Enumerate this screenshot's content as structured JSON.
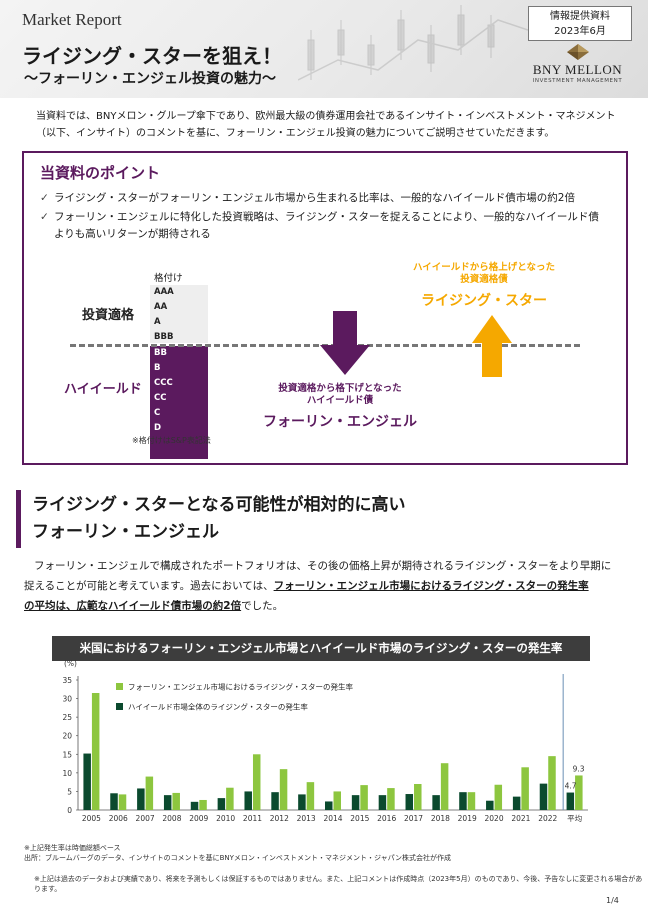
{
  "header": {
    "label": "Market Report",
    "title": "ライジング・スターを狙え！",
    "subtitle": "～フォーリン・エンジェル投資の魅力～",
    "info_line1": "情報提供資料",
    "info_line2": "2023年6月",
    "brand": "BNY MELLON",
    "brand_sub": "INVESTMENT MANAGEMENT"
  },
  "intro": {
    "line1": "当資料では、BNYメロン・グループ傘下であり、欧州最大級の債券運用会社であるインサイト・インベストメント・マネジメント",
    "line2": "（以下、インサイト）のコメントを基に、フォーリン・エンジェル投資の魅力についてご説明させていただきます。"
  },
  "points": {
    "title": "当資料のポイント",
    "check": "✓",
    "bullet1": "ライジング・スターがフォーリン・エンジェル市場から生まれる比率は、一般的なハイイールド債市場の約2倍",
    "bullet2a": "フォーリン・エンジェルに特化した投資戦略は、ライジング・スターを捉えることにより、一般的なハイイールド債",
    "bullet2b": "よりも高いリターンが期待される",
    "rating_header": "格付け",
    "ratings_ig": [
      "AAA",
      "AA",
      "A",
      "BBB"
    ],
    "ratings_hy": [
      "BB",
      "B",
      "CCC",
      "CC",
      "C",
      "D"
    ],
    "label_ig": "投資適格",
    "label_hy": "ハイイールド",
    "rating_note": "※格付けはS&P表記法",
    "down_line1": "投資適格から格下げとなった",
    "down_line2": "ハイイールド債",
    "down_big": "フォーリン・エンジェル",
    "up_line1": "ハイイールドから格上げとなった",
    "up_line2": "投資適格債",
    "up_big": "ライジング・スター",
    "color_purple": "#5b1a5e",
    "color_orange": "#f5a800"
  },
  "section2": {
    "title_line1": "ライジング・スターとなる可能性が相対的に高い",
    "title_line2": "フォーリン・エンジェル",
    "body1": "フォーリン・エンジェルで構成されたポートフォリオは、その後の価格上昇が期待されるライジング・スターをより早期に",
    "body2a": "捉えることが可能と考えています。過去においては、",
    "body2b": "フォーリン・エンジェル市場におけるライジング・スターの発生率",
    "body3a": "の平均は、広範なハイイールド債市場の約2倍",
    "body3b": "でした。"
  },
  "chart_data": {
    "type": "bar",
    "title": "米国におけるフォーリン・エンジェル市場とハイイールド市場のライジング・スターの発生率",
    "ylabel": "(%)",
    "ylim": [
      0,
      35
    ],
    "yticks": [
      0,
      5,
      10,
      15,
      20,
      25,
      30,
      35
    ],
    "categories": [
      "2005",
      "2006",
      "2007",
      "2008",
      "2009",
      "2010",
      "2011",
      "2012",
      "2013",
      "2014",
      "2015",
      "2016",
      "2017",
      "2018",
      "2019",
      "2020",
      "2021",
      "2022",
      "平均"
    ],
    "series": [
      {
        "name": "フォーリン・エンジェル市場におけるライジング・スターの発生率",
        "color": "#8dc63f",
        "values": [
          31.5,
          4.2,
          9.0,
          4.6,
          2.7,
          6.0,
          15.0,
          11.0,
          7.5,
          5.0,
          6.7,
          5.9,
          7.0,
          12.6,
          4.8,
          6.8,
          11.5,
          14.5,
          9.3
        ]
      },
      {
        "name": "ハイイールド市場全体のライジング・スターの発生率",
        "color": "#0b4a2e",
        "values": [
          15.2,
          4.5,
          5.8,
          4.0,
          2.2,
          3.2,
          5.0,
          4.8,
          4.2,
          2.3,
          4.0,
          4.0,
          4.3,
          4.0,
          4.8,
          2.5,
          3.6,
          7.1,
          4.7
        ]
      }
    ],
    "data_labels": [
      "9.3",
      "4.7"
    ],
    "legend_position": "top-left",
    "grid": false
  },
  "footer": {
    "note1": "※上記発生率は時価総額ベース",
    "note2": "出所：ブルームバーグのデータ、インサイトのコメントを基にBNYメロン・インベストメント・マネジメント・ジャパン株式会社が作成",
    "disclaimer": "※上記は過去のデータおよび実績であり、将来を予測もしくは保証するものではありません。また、上記コメントは作成時点（2023年5月）のものであり、今後、予告なしに変更される場合があります。",
    "page": "1/4"
  }
}
